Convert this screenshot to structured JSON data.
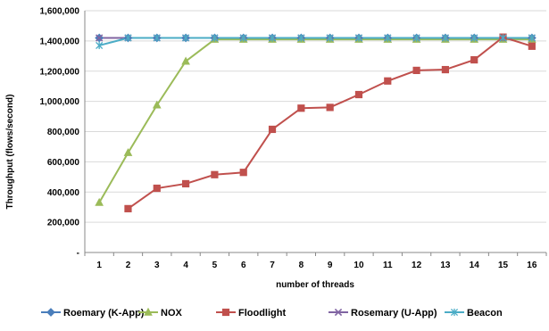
{
  "chart_data": {
    "type": "line",
    "title": "",
    "xlabel": "number of threads",
    "ylabel": "Throughput (flows/second)",
    "categories": [
      "1",
      "2",
      "3",
      "4",
      "5",
      "6",
      "7",
      "8",
      "9",
      "10",
      "11",
      "12",
      "13",
      "14",
      "15",
      "16"
    ],
    "ylim": [
      0,
      1600000
    ],
    "y_ticks": [
      {
        "value": 0,
        "label": "-"
      },
      {
        "value": 200000,
        "label": "200,000"
      },
      {
        "value": 400000,
        "label": "400,000"
      },
      {
        "value": 600000,
        "label": "600,000"
      },
      {
        "value": 800000,
        "label": "800,000"
      },
      {
        "value": 1000000,
        "label": "1,000,000"
      },
      {
        "value": 1200000,
        "label": "1,200,000"
      },
      {
        "value": 1400000,
        "label": "1,400,000"
      },
      {
        "value": 1600000,
        "label": "1,600,000"
      }
    ],
    "grid": true,
    "legend_position": "bottom",
    "series": [
      {
        "name": "Roemary (K-App)",
        "color": "#4a7ebb",
        "marker": "diamond",
        "values": [
          1420000,
          1420000,
          1420000,
          1420000,
          1420000,
          1420000,
          1420000,
          1420000,
          1420000,
          1420000,
          1420000,
          1420000,
          1420000,
          1420000,
          1420000,
          1420000
        ]
      },
      {
        "name": "NOX",
        "color": "#9bbb59",
        "marker": "triangle",
        "values": [
          330000,
          660000,
          975000,
          1265000,
          1410000,
          1410000,
          1410000,
          1410000,
          1410000,
          1410000,
          1410000,
          1410000,
          1410000,
          1410000,
          1410000,
          1410000
        ]
      },
      {
        "name": "Floodlight",
        "color": "#c0504d",
        "marker": "square",
        "values": [
          null,
          290000,
          425000,
          455000,
          515000,
          530000,
          815000,
          955000,
          960000,
          1045000,
          1135000,
          1205000,
          1210000,
          1275000,
          1425000,
          1365000
        ]
      },
      {
        "name": "Rosemary (U-App)",
        "color": "#8064a2",
        "marker": "x",
        "values": [
          1420000,
          1420000,
          1420000,
          1420000,
          1420000,
          1420000,
          1420000,
          1420000,
          1420000,
          1420000,
          1420000,
          1420000,
          1420000,
          1420000,
          1420000,
          1420000
        ]
      },
      {
        "name": "Beacon",
        "color": "#4bacc6",
        "marker": "star",
        "values": [
          1370000,
          1420000,
          1420000,
          1420000,
          1420000,
          1420000,
          1420000,
          1420000,
          1420000,
          1420000,
          1420000,
          1420000,
          1420000,
          1420000,
          1420000,
          1420000
        ]
      }
    ]
  }
}
